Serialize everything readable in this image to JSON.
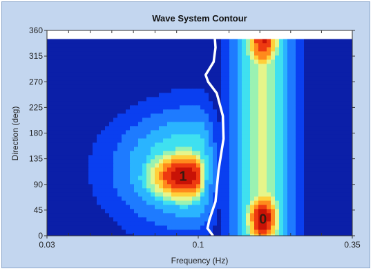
{
  "chart_data": {
    "type": "heatmap",
    "title": "Wave System Contour",
    "xlabel": "Frequency (Hz)",
    "ylabel": "Direction (deg)",
    "xlim": [
      0.03,
      0.35
    ],
    "ylim": [
      0,
      360
    ],
    "x_ticks": [
      "0.03",
      "0.1",
      "0.35"
    ],
    "x_tick_values": [
      0.03,
      0.1,
      0.35
    ],
    "y_ticks": [
      "0",
      "45",
      "90",
      "135",
      "180",
      "225",
      "270",
      "315",
      "360"
    ],
    "y_tick_values": [
      0,
      45,
      90,
      135,
      180,
      225,
      270,
      315,
      360
    ],
    "data_ylim": [
      0,
      345
    ],
    "colormap": [
      "#0b1fa8",
      "#0a3ff0",
      "#1e7bff",
      "#2ab4ff",
      "#3fe0f0",
      "#9af2b2",
      "#e6f58a",
      "#ffd03a",
      "#ff8a1c",
      "#ee3a10",
      "#c81206"
    ],
    "peaks": [
      {
        "label": "1",
        "frequency": 0.093,
        "direction": 105,
        "energy": 0.98
      },
      {
        "label": "0",
        "frequency": 0.205,
        "direction": 30,
        "energy": 1.0
      }
    ],
    "secondary_peaks": [
      {
        "frequency": 0.205,
        "direction": 340,
        "energy": 0.92
      },
      {
        "frequency": 0.205,
        "direction": 170,
        "energy": 0.52
      }
    ],
    "separation_line": {
      "frequency": [
        0.124,
        0.115,
        0.118,
        0.128,
        0.133,
        0.141,
        0.14,
        0.13,
        0.116,
        0.112,
        0.125,
        0.128,
        0.127
      ],
      "direction": [
        0,
        13,
        28,
        60,
        115,
        170,
        210,
        250,
        270,
        282,
        305,
        330,
        345
      ]
    }
  }
}
